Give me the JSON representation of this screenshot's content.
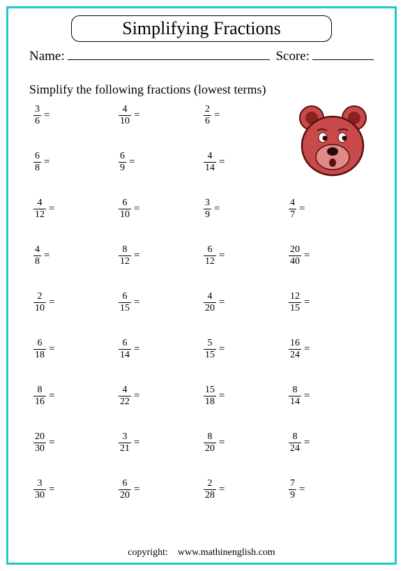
{
  "title": "Simplifying Fractions",
  "name_label": "Name:",
  "score_label": "Score:",
  "instructions": "Simplify the following fractions (lowest terms)",
  "border_color": "#1ec9c9",
  "bear": {
    "body_fill": "#c84a4a",
    "body_stroke": "#5a1010",
    "snout_fill": "#e08a8a",
    "eye_fill": "#2a0808",
    "nose_fill": "#2a0808"
  },
  "problems": [
    [
      {
        "n": "3",
        "d": "6"
      },
      {
        "n": "4",
        "d": "10"
      },
      {
        "n": "2",
        "d": "6"
      },
      null
    ],
    [
      {
        "n": "6",
        "d": "8"
      },
      {
        "n": "6",
        "d": "9"
      },
      {
        "n": "4",
        "d": "14"
      },
      null
    ],
    [
      {
        "n": "4",
        "d": "12"
      },
      {
        "n": "6",
        "d": "10"
      },
      {
        "n": "3",
        "d": "9"
      },
      {
        "n": "4",
        "d": "7"
      }
    ],
    [
      {
        "n": "4",
        "d": "8"
      },
      {
        "n": "8",
        "d": "12"
      },
      {
        "n": "6",
        "d": "12"
      },
      {
        "n": "20",
        "d": "40"
      }
    ],
    [
      {
        "n": "2",
        "d": "10"
      },
      {
        "n": "6",
        "d": "15"
      },
      {
        "n": "4",
        "d": "20"
      },
      {
        "n": "12",
        "d": "15"
      }
    ],
    [
      {
        "n": "6",
        "d": "18"
      },
      {
        "n": "6",
        "d": "14"
      },
      {
        "n": "5",
        "d": "15"
      },
      {
        "n": "16",
        "d": "24"
      }
    ],
    [
      {
        "n": "8",
        "d": "16"
      },
      {
        "n": "4",
        "d": "22"
      },
      {
        "n": "15",
        "d": "18"
      },
      {
        "n": "8",
        "d": "14"
      }
    ],
    [
      {
        "n": "20",
        "d": "30"
      },
      {
        "n": "3",
        "d": "21"
      },
      {
        "n": "8",
        "d": "20"
      },
      {
        "n": "8",
        "d": "24"
      }
    ],
    [
      {
        "n": "3",
        "d": "30"
      },
      {
        "n": "6",
        "d": "20"
      },
      {
        "n": "2",
        "d": "28"
      },
      {
        "n": "7",
        "d": "9"
      }
    ]
  ],
  "copyright_label": "copyright:",
  "copyright_url": "www.mathinenglish.com"
}
